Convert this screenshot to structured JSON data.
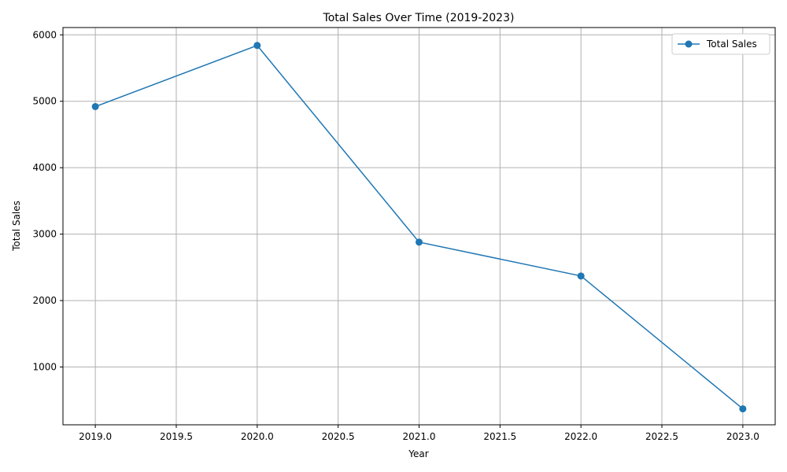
{
  "chart_data": {
    "type": "line",
    "title": "Total Sales Over Time (2019-2023)",
    "xlabel": "Year",
    "ylabel": "Total Sales",
    "x": [
      2019,
      2020,
      2021,
      2022,
      2023
    ],
    "series": [
      {
        "name": "Total Sales",
        "values": [
          4920,
          5840,
          2880,
          2370,
          370
        ]
      }
    ],
    "xlim": [
      2018.8,
      2023.2
    ],
    "ylim": [
      130,
      6110
    ],
    "xticks": [
      "2019.0",
      "2019.5",
      "2020.0",
      "2020.5",
      "2021.0",
      "2021.5",
      "2022.0",
      "2022.5",
      "2023.0"
    ],
    "yticks": [
      "1000",
      "2000",
      "3000",
      "4000",
      "5000",
      "6000"
    ],
    "grid": true,
    "legend_position": "top-right",
    "line_color": "#1f77b4",
    "marker": "circle",
    "grid_color": "#b0b0b0"
  }
}
